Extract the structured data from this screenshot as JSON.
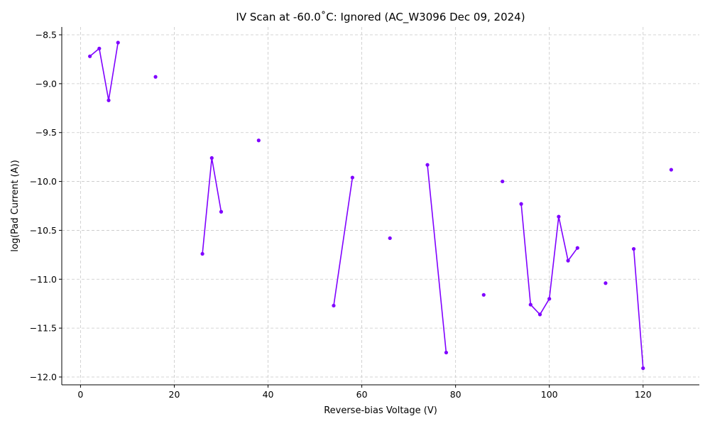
{
  "chart_data": {
    "type": "line",
    "title": "IV Scan at -60.0˚C: Ignored (AC_W3096 Dec 09, 2024)",
    "xlabel": "Reverse-bias Voltage (V)",
    "ylabel": "log(Pad Current (A))",
    "xlim": [
      -4,
      132
    ],
    "ylim": [
      -12.08,
      -8.42
    ],
    "xticks": [
      0,
      20,
      40,
      60,
      80,
      100,
      120
    ],
    "yticks": [
      -12.0,
      -11.5,
      -11.0,
      -10.5,
      -10.0,
      -9.5,
      -9.0,
      -8.5
    ],
    "xtick_labels": [
      "0",
      "20",
      "40",
      "60",
      "80",
      "100",
      "120"
    ],
    "ytick_labels": [
      "−12.0",
      "−11.5",
      "−11.0",
      "−10.5",
      "−10.0",
      "−9.5",
      "−9.0",
      "−8.5"
    ],
    "grid": true,
    "color": "#7f00ff",
    "segments": [
      [
        [
          2,
          -8.72
        ],
        [
          4,
          -8.64
        ],
        [
          6,
          -9.17
        ],
        [
          8,
          -8.58
        ]
      ],
      [
        [
          16,
          -8.93
        ]
      ],
      [
        [
          26,
          -10.74
        ],
        [
          28,
          -9.76
        ],
        [
          30,
          -10.31
        ]
      ],
      [
        [
          38,
          -9.58
        ]
      ],
      [
        [
          54,
          -11.27
        ],
        [
          58,
          -9.96
        ]
      ],
      [
        [
          66,
          -10.58
        ]
      ],
      [
        [
          74,
          -9.83
        ],
        [
          78,
          -11.75
        ]
      ],
      [
        [
          86,
          -11.16
        ]
      ],
      [
        [
          90,
          -10.0
        ]
      ],
      [
        [
          94,
          -10.23
        ],
        [
          96,
          -11.26
        ],
        [
          98,
          -11.36
        ],
        [
          100,
          -11.2
        ],
        [
          102,
          -10.36
        ],
        [
          104,
          -10.81
        ],
        [
          106,
          -10.68
        ]
      ],
      [
        [
          112,
          -11.04
        ]
      ],
      [
        [
          118,
          -10.69
        ],
        [
          120,
          -11.91
        ]
      ],
      [
        [
          126,
          -9.88
        ]
      ]
    ]
  }
}
